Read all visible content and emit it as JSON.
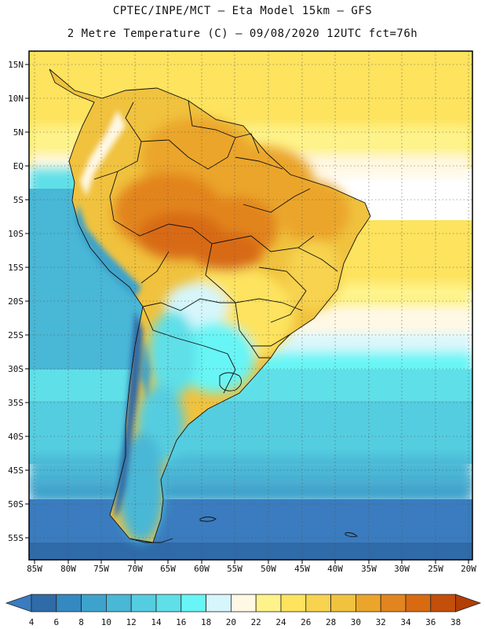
{
  "header": {
    "line1": "CPTEC/INPE/MCT –  Eta Model 15km – GFS",
    "line2": "2 Metre Temperature (C) – 09/08/2020 12UTC fct=76h"
  },
  "map": {
    "lat_labels": [
      "15N",
      "10N",
      "5N",
      "EQ",
      "5S",
      "10S",
      "15S",
      "20S",
      "25S",
      "30S",
      "35S",
      "40S",
      "45S",
      "50S",
      "55S"
    ],
    "lon_labels": [
      "85W",
      "80W",
      "75W",
      "70W",
      "65W",
      "60W",
      "55W",
      "50W",
      "45W",
      "40W",
      "35W",
      "30W",
      "25W",
      "20W"
    ]
  },
  "colorbar": {
    "ticks": [
      "4",
      "6",
      "8",
      "10",
      "12",
      "14",
      "16",
      "18",
      "20",
      "22",
      "24",
      "26",
      "28",
      "30",
      "32",
      "34",
      "36",
      "38"
    ],
    "colors": [
      "#3a7cbf",
      "#2f6aa9",
      "#3389c0",
      "#3ea3cc",
      "#49b7d6",
      "#55cde0",
      "#5fdfe8",
      "#68f5f5",
      "#d6f6fb",
      "#fff8e4",
      "#fef38a",
      "#fde35e",
      "#f7d34f",
      "#f0c23e",
      "#eba52a",
      "#e2841f",
      "#d86a12",
      "#c24f0a",
      "#b13f06"
    ]
  }
}
